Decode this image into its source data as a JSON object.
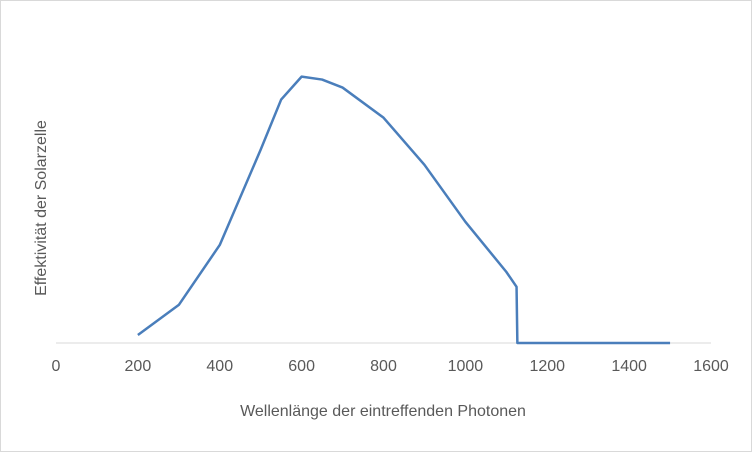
{
  "chart_data": {
    "type": "line",
    "x_label": "Wellenlänge der eintreffenden Photonen",
    "y_label": "Effektivität der Solarzelle",
    "x": [
      200,
      300,
      400,
      500,
      550,
      600,
      650,
      700,
      800,
      900,
      1000,
      1100,
      1125,
      1127,
      1500
    ],
    "series": [
      {
        "name": "Effektivität",
        "color": "#4a7ebb",
        "values": [
          3.0,
          14.3,
          36.8,
          72.6,
          91.4,
          100,
          98.9,
          95.9,
          84.6,
          66.9,
          45.5,
          26.7,
          21.1,
          0,
          0
        ]
      }
    ],
    "xlim": [
      0,
      1600
    ],
    "xticks": [
      0,
      200,
      400,
      600,
      800,
      1000,
      1200,
      1400,
      1600
    ],
    "ylim": [
      0,
      110
    ]
  }
}
